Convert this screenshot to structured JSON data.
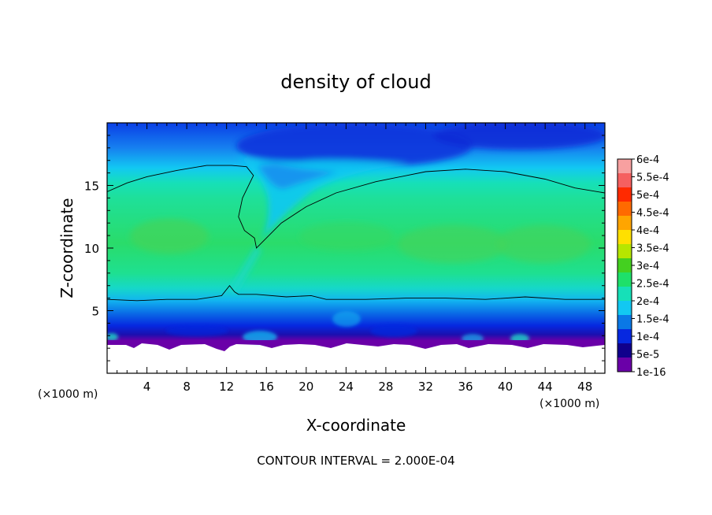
{
  "chart_data": {
    "type": "heatmap",
    "title": "density of cloud",
    "xlabel": "X-coordinate",
    "ylabel": "Z-coordinate",
    "x_unit": "(×1000 m)",
    "x_unit_right": "(×1000 m)",
    "xlim": [
      0,
      50
    ],
    "ylim": [
      0,
      20
    ],
    "x_ticks": [
      4,
      8,
      12,
      16,
      20,
      24,
      28,
      32,
      36,
      40,
      44,
      48
    ],
    "y_ticks": [
      5,
      10,
      15
    ],
    "footer": "CONTOUR INTERVAL = 2.000E-04",
    "colorbar": {
      "labels": [
        "6e-4",
        "5.5e-4",
        "5e-4",
        "4.5e-4",
        "4e-4",
        "3.5e-4",
        "3e-4",
        "2.5e-4",
        "2e-4",
        "1.5e-4",
        "1e-4",
        "5e-5",
        "1e-16"
      ],
      "colors": [
        "#f7a0a0",
        "#f56060",
        "#ff2a00",
        "#ff6a00",
        "#ffa500",
        "#ffe000",
        "#b6e600",
        "#44d020",
        "#1ee06a",
        "#16e0b8",
        "#12c8f2",
        "#0a78e6",
        "#0628e0",
        "#10008c",
        "#6a00a8"
      ]
    },
    "contour_line": {
      "level": "2.000E-04",
      "upper_boundary": [
        [
          0,
          14.5
        ],
        [
          2,
          15.2
        ],
        [
          4,
          15.7
        ],
        [
          7,
          16.2
        ],
        [
          10,
          16.6
        ],
        [
          12.5,
          16.6
        ],
        [
          14,
          16.5
        ],
        [
          14.7,
          15.8
        ],
        [
          13.6,
          14.0
        ],
        [
          13.2,
          12.5
        ],
        [
          13.8,
          11.4
        ],
        [
          14.8,
          10.8
        ],
        [
          15.0,
          10.0
        ],
        [
          16.0,
          10.8
        ],
        [
          17.5,
          12.0
        ],
        [
          20,
          13.3
        ],
        [
          23,
          14.4
        ],
        [
          27,
          15.3
        ],
        [
          32,
          16.1
        ],
        [
          36,
          16.3
        ],
        [
          40,
          16.1
        ],
        [
          44,
          15.5
        ],
        [
          47,
          14.8
        ],
        [
          50,
          14.4
        ]
      ],
      "lower_boundary": [
        [
          0,
          5.9
        ],
        [
          3,
          5.8
        ],
        [
          6,
          5.9
        ],
        [
          9,
          5.9
        ],
        [
          11.5,
          6.2
        ],
        [
          12.3,
          7.0
        ],
        [
          12.8,
          6.5
        ],
        [
          13.2,
          6.3
        ],
        [
          15,
          6.3
        ],
        [
          18,
          6.1
        ],
        [
          20.5,
          6.2
        ],
        [
          22,
          5.9
        ],
        [
          26,
          5.9
        ],
        [
          30,
          6.0
        ],
        [
          34,
          6.0
        ],
        [
          38,
          5.9
        ],
        [
          42,
          6.1
        ],
        [
          46,
          5.9
        ],
        [
          50,
          5.9
        ]
      ]
    }
  }
}
